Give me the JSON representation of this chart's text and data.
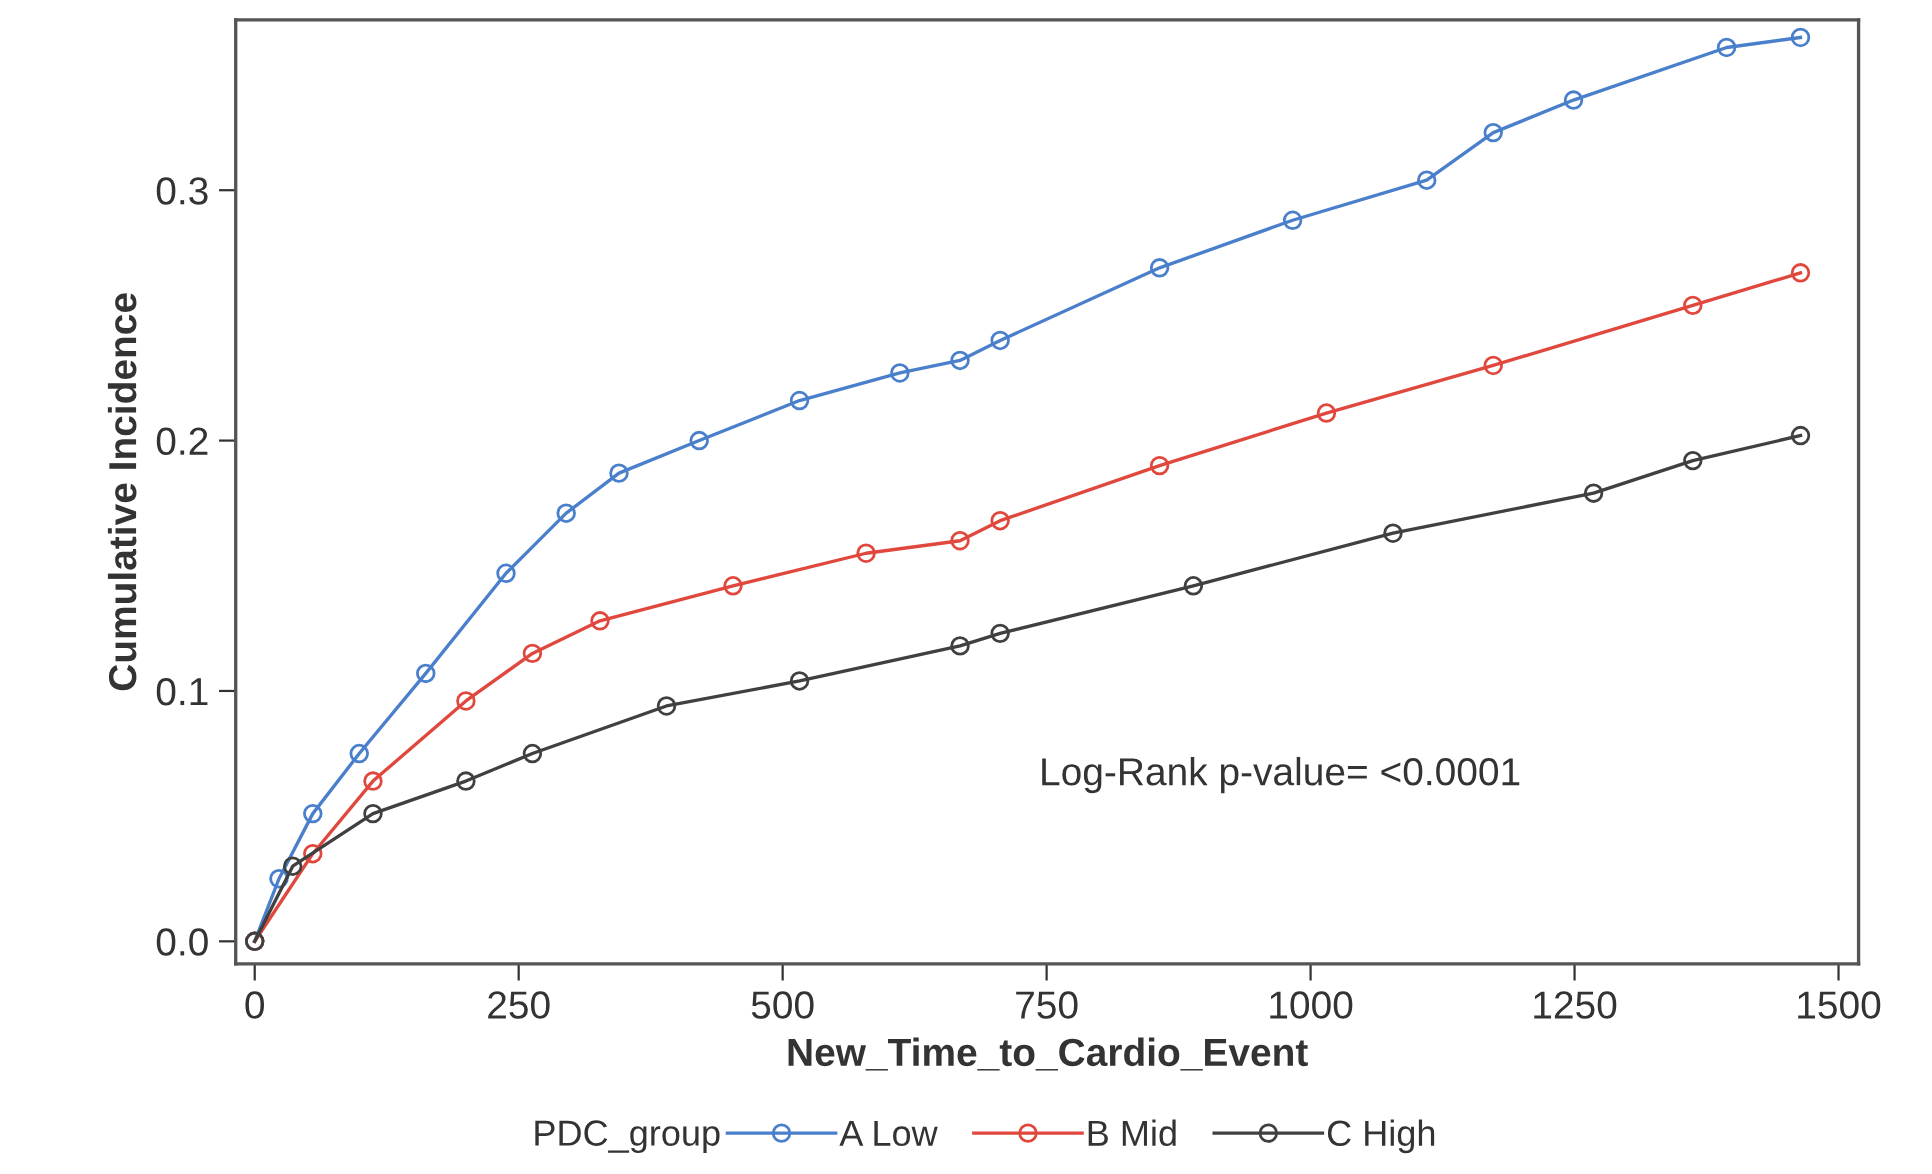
{
  "chart_data": {
    "type": "line",
    "xlabel": "New_Time_to_Cardio_Event",
    "ylabel": "Cumulative Incidence",
    "legend_title": "PDC_group",
    "annotations": [
      "Log-Rank p-value= <0.0001"
    ],
    "xlim": [
      -18,
      1519
    ],
    "ylim": [
      -0.009,
      0.368
    ],
    "xticks": [
      0,
      250,
      500,
      750,
      1000,
      1250,
      1500
    ],
    "yticks": [
      {
        "value": 0,
        "label": "0.0"
      },
      0.1,
      0.2,
      0.3
    ],
    "grid": false,
    "legend": "bottom",
    "marker": "circle",
    "line_style": "solid",
    "series": [
      {
        "name": "A Low",
        "color": "#4a7fcb",
        "x": [
          0,
          23,
          55,
          99,
          162,
          238,
          295,
          345,
          421,
          516,
          611,
          668,
          706,
          857,
          983,
          1110,
          1173,
          1249,
          1394,
          1464
        ],
        "values": [
          0,
          0.025,
          0.051,
          0.075,
          0.107,
          0.147,
          0.171,
          0.187,
          0.2,
          0.216,
          0.227,
          0.232,
          0.24,
          0.269,
          0.288,
          0.304,
          0.323,
          0.336,
          0.357,
          0.361
        ]
      },
      {
        "name": "B Mid",
        "color": "#e0483e",
        "x": [
          0,
          55,
          112,
          200,
          263,
          327,
          453,
          579,
          668,
          706,
          857,
          1015,
          1173,
          1362,
          1464
        ],
        "values": [
          0,
          0.035,
          0.064,
          0.096,
          0.115,
          0.128,
          0.142,
          0.155,
          0.16,
          0.168,
          0.19,
          0.211,
          0.23,
          0.254,
          0.267
        ]
      },
      {
        "name": "C High",
        "color": "#404040",
        "x": [
          0,
          36,
          112,
          200,
          263,
          390,
          516,
          668,
          706,
          889,
          1078,
          1268,
          1362,
          1464
        ],
        "values": [
          0,
          0.03,
          0.051,
          0.064,
          0.075,
          0.094,
          0.104,
          0.118,
          0.123,
          0.142,
          0.163,
          0.179,
          0.192,
          0.202
        ]
      }
    ]
  }
}
